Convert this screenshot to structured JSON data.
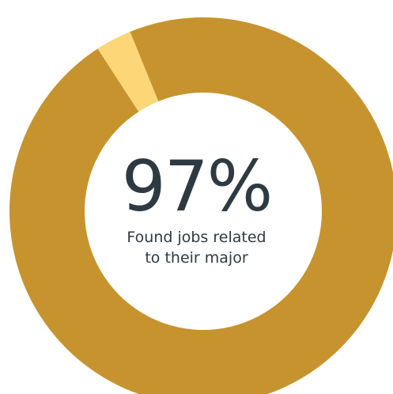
{
  "chart_data": {
    "type": "pie",
    "style": "donut",
    "center_value": "97%",
    "center_label_lines": [
      "Found jobs related",
      "to their major"
    ],
    "slices": [
      {
        "value": 97,
        "color": "#c6932e"
      },
      {
        "value": 3,
        "color": "#fcd677"
      }
    ],
    "start": "top",
    "direction": "counterclockwise-small-slice"
  }
}
